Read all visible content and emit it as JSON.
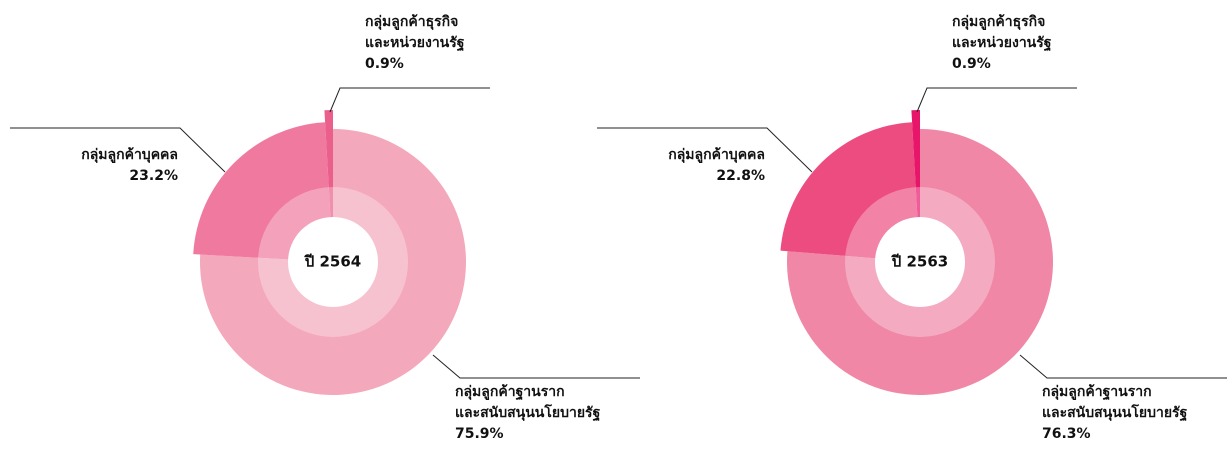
{
  "chart_data": [
    {
      "type": "pie",
      "center_label": "ปี 2564",
      "categories": [
        [
          "กลุ่มลูกค้าฐานราก",
          "และสนับสนุนนโยบายรัฐ"
        ],
        [
          "กลุ่มลูกค้าบุคคล"
        ],
        [
          "กลุ่มลูกค้าธุรกิจ",
          "และหน่วยงานรัฐ"
        ]
      ],
      "values": [
        75.9,
        23.2,
        0.9
      ],
      "value_labels": [
        "75.9%",
        "23.2%",
        "0.9%"
      ],
      "colors": [
        "#f4a8bb",
        "#f07a9f",
        "#eb5f8d"
      ]
    },
    {
      "type": "pie",
      "center_label": "ปี 2563",
      "categories": [
        [
          "กลุ่มลูกค้าฐานราก",
          "และสนับสนุนนโยบายรัฐ"
        ],
        [
          "กลุ่มลูกค้าบุคคล"
        ],
        [
          "กลุ่มลูกค้าธุรกิจ",
          "และหน่วยงานรัฐ"
        ]
      ],
      "values": [
        76.3,
        22.8,
        0.9
      ],
      "value_labels": [
        "76.3%",
        "22.8%",
        "0.9%"
      ],
      "colors": [
        "#f087a6",
        "#ec4c80",
        "#e8166b"
      ]
    }
  ]
}
